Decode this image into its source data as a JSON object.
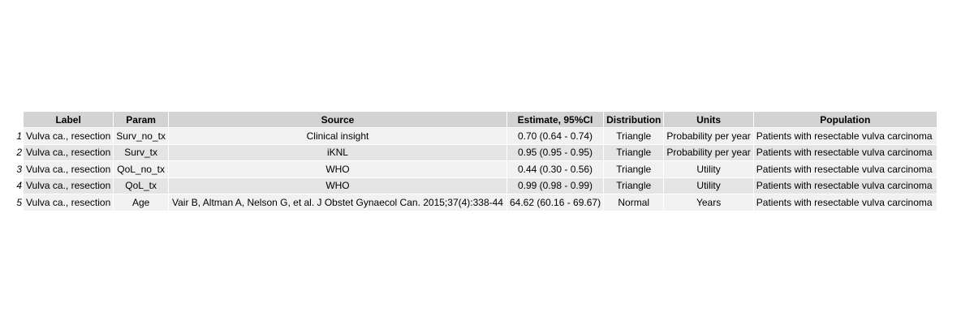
{
  "table": {
    "columns": [
      "",
      "Label",
      "Param",
      "Source",
      "Estimate, 95%CI",
      "Distribution",
      "Units",
      "Population"
    ],
    "rows": [
      {
        "n": "1",
        "label": "Vulva ca., resection",
        "param": "Surv_no_tx",
        "source": "Clinical insight",
        "estimate": "0.70 (0.64 - 0.74)",
        "distribution": "Triangle",
        "units": "Probability per year",
        "population": "Patients with resectable vulva carcinoma"
      },
      {
        "n": "2",
        "label": "Vulva ca., resection",
        "param": "Surv_tx",
        "source": "iKNL",
        "estimate": "0.95 (0.95 - 0.95)",
        "distribution": "Triangle",
        "units": "Probability per year",
        "population": "Patients with resectable vulva carcinoma"
      },
      {
        "n": "3",
        "label": "Vulva ca., resection",
        "param": "QoL_no_tx",
        "source": "WHO",
        "estimate": "0.44 (0.30 - 0.56)",
        "distribution": "Triangle",
        "units": "Utility",
        "population": "Patients with resectable vulva carcinoma"
      },
      {
        "n": "4",
        "label": "Vulva ca., resection",
        "param": "QoL_tx",
        "source": "WHO",
        "estimate": "0.99 (0.98 - 0.99)",
        "distribution": "Triangle",
        "units": "Utility",
        "population": "Patients with resectable vulva carcinoma"
      },
      {
        "n": "5",
        "label": "Vulva ca., resection",
        "param": "Age",
        "source": "Vair B, Altman A, Nelson G, et al. J Obstet Gynaecol Can. 2015;37(4):338-44",
        "estimate": "64.62 (60.16 - 69.67)",
        "distribution": "Normal",
        "units": "Years",
        "population": "Patients with resectable vulva carcinoma"
      }
    ]
  }
}
